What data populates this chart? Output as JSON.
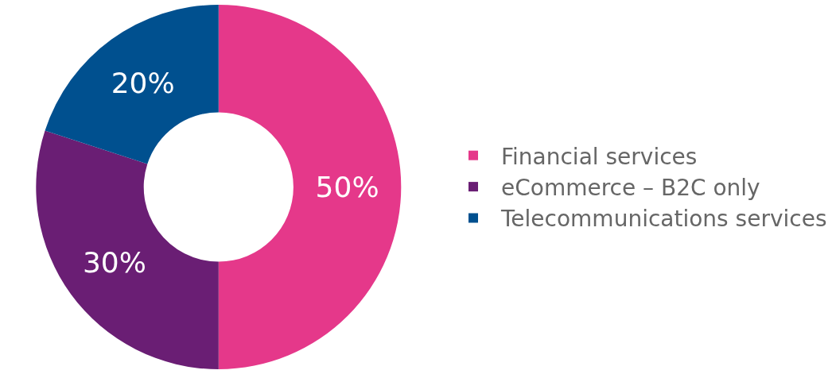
{
  "chart_data": {
    "type": "donut",
    "categories": [
      "Financial services",
      "eCommerce – B2C only",
      "Telecommunications services"
    ],
    "values": [
      50,
      30,
      20
    ],
    "colors": [
      "#e5388a",
      "#6a1e74",
      "#00508f"
    ],
    "value_labels": [
      "50%",
      "30%",
      "20%"
    ],
    "legend": "right"
  }
}
